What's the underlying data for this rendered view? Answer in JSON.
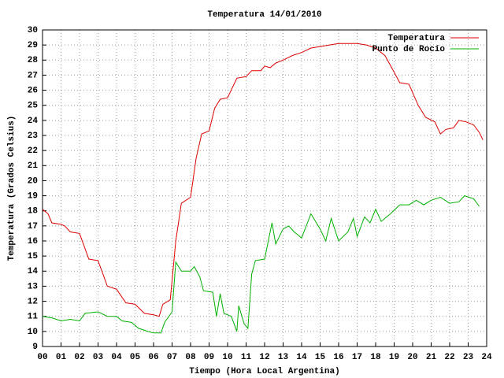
{
  "chart_data": {
    "type": "line",
    "title": "Temperatura 14/01/2010",
    "x_label": "Tiempo (Hora Local Argentina)",
    "y_label": "Temperatura (Grados Celsius)",
    "xlim": [
      0,
      24
    ],
    "ylim": [
      9,
      30
    ],
    "xticks": [
      {
        "value": 0,
        "label": "00"
      },
      {
        "value": 1,
        "label": "01"
      },
      {
        "value": 2,
        "label": "02"
      },
      {
        "value": 3,
        "label": "03"
      },
      {
        "value": 4,
        "label": "04"
      },
      {
        "value": 5,
        "label": "05"
      },
      {
        "value": 6,
        "label": "06"
      },
      {
        "value": 7,
        "label": "07"
      },
      {
        "value": 8,
        "label": "08"
      },
      {
        "value": 9,
        "label": "09"
      },
      10,
      11,
      12,
      13,
      14,
      15,
      16,
      17,
      18,
      19,
      20,
      21,
      22,
      23,
      24
    ],
    "yticks": [
      9,
      10,
      11,
      12,
      13,
      14,
      15,
      16,
      17,
      18,
      19,
      20,
      21,
      22,
      23,
      24,
      25,
      26,
      27,
      28,
      29,
      30
    ],
    "grid": true,
    "legend": "top-right",
    "series": [
      {
        "name": "Temperatura",
        "color": "#e00000",
        "x": [
          0,
          0.3,
          0.5,
          1.0,
          1.2,
          1.5,
          2.0,
          2.5,
          3.0,
          3.5,
          4.0,
          4.5,
          5.0,
          5.5,
          6.0,
          6.3,
          6.5,
          6.9,
          7.2,
          7.5,
          8.0,
          8.3,
          8.6,
          9.0,
          9.3,
          9.6,
          10.0,
          10.5,
          11.0,
          11.3,
          11.8,
          12.0,
          12.3,
          12.6,
          13.0,
          13.5,
          14.0,
          14.5,
          15.0,
          15.5,
          16.0,
          16.5,
          17.0,
          17.5,
          18.0,
          18.5,
          19.0,
          19.3,
          19.8,
          20.3,
          20.7,
          21.2,
          21.5,
          21.8,
          22.2,
          22.5,
          22.9,
          23.3,
          23.6,
          23.8
        ],
        "values": [
          18.1,
          17.8,
          17.2,
          17.1,
          17.0,
          16.6,
          16.5,
          14.8,
          14.7,
          13.0,
          12.8,
          11.9,
          11.8,
          11.2,
          11.1,
          11.0,
          11.8,
          12.1,
          16.0,
          18.5,
          18.9,
          21.5,
          23.1,
          23.3,
          24.8,
          25.4,
          25.5,
          26.8,
          26.9,
          27.3,
          27.3,
          27.6,
          27.5,
          27.8,
          28.0,
          28.3,
          28.5,
          28.8,
          28.9,
          29.0,
          29.1,
          29.1,
          29.1,
          29.0,
          28.8,
          28.3,
          27.2,
          26.5,
          26.4,
          25.0,
          24.2,
          23.9,
          23.1,
          23.4,
          23.5,
          24.0,
          23.9,
          23.7,
          23.2,
          22.7
        ]
      },
      {
        "name": "Punto de Rocío",
        "color": "#00b000",
        "x": [
          0,
          0.5,
          1.0,
          1.5,
          2.0,
          2.3,
          3.0,
          3.5,
          4.0,
          4.3,
          4.8,
          5.2,
          5.7,
          6.0,
          6.4,
          6.6,
          7.0,
          7.2,
          7.5,
          8.0,
          8.2,
          8.5,
          8.7,
          9.2,
          9.4,
          9.6,
          9.8,
          10.2,
          10.5,
          10.6,
          10.9,
          11.1,
          11.3,
          11.5,
          12.0,
          12.2,
          12.4,
          12.6,
          13.0,
          13.3,
          13.6,
          14.0,
          14.5,
          15.0,
          15.3,
          15.6,
          16.0,
          16.5,
          16.8,
          17.0,
          17.4,
          17.7,
          18.0,
          18.3,
          18.8,
          19.3,
          19.8,
          20.2,
          20.6,
          21.0,
          21.5,
          22.0,
          22.5,
          22.8,
          23.3,
          23.6
        ],
        "values": [
          11.0,
          10.9,
          10.7,
          10.8,
          10.7,
          11.2,
          11.3,
          11.0,
          11.0,
          10.7,
          10.6,
          10.2,
          10.0,
          9.9,
          9.9,
          10.6,
          11.3,
          14.6,
          14.0,
          14.0,
          14.3,
          13.6,
          12.7,
          12.6,
          11.0,
          12.5,
          11.2,
          11.0,
          10.0,
          11.7,
          10.5,
          10.2,
          13.8,
          14.7,
          14.8,
          16.0,
          17.2,
          15.8,
          16.8,
          17.0,
          16.6,
          16.2,
          17.8,
          16.8,
          16.0,
          17.5,
          16.0,
          16.6,
          17.5,
          16.3,
          17.6,
          17.2,
          18.1,
          17.3,
          17.8,
          18.4,
          18.4,
          18.7,
          18.4,
          18.7,
          18.9,
          18.5,
          18.6,
          19.0,
          18.8,
          18.3
        ]
      }
    ]
  }
}
